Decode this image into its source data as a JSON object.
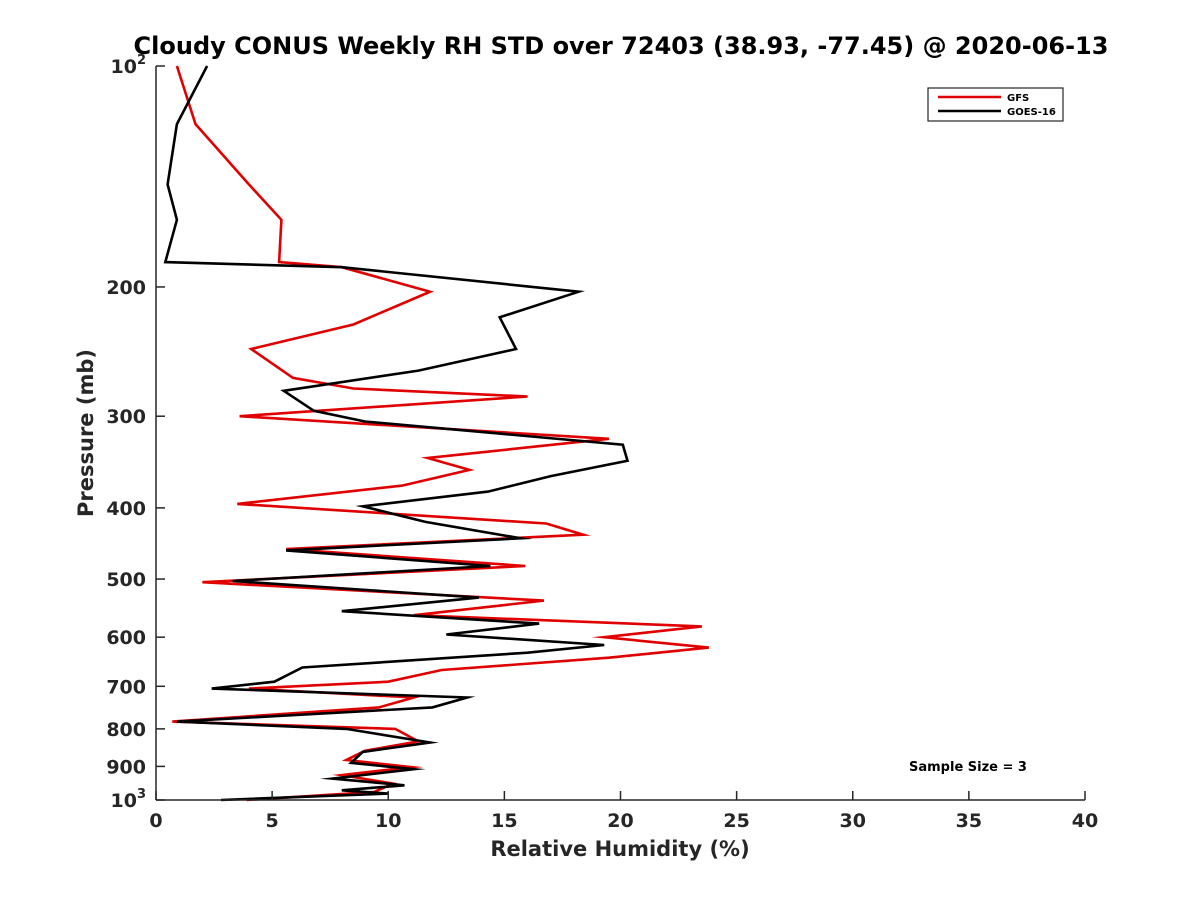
{
  "chart_data": {
    "type": "line",
    "title": "Cloudy CONUS Weekly RH STD over 72403 (38.93, -77.45) @ 2020-06-13",
    "xlabel": "Relative Humidity (%)",
    "ylabel": "Pressure (mb)",
    "xlim": [
      0,
      40
    ],
    "ylim": [
      100,
      1000
    ],
    "yscale": "log",
    "y_reversed": true,
    "grid": false,
    "legend_position": "top-right",
    "x_ticks": [
      "0",
      "5",
      "10",
      "15",
      "20",
      "25",
      "30",
      "35",
      "40"
    ],
    "y_ticks": [
      {
        "value": 100,
        "base": "10",
        "exp": "2"
      },
      {
        "value": 200,
        "label": "200"
      },
      {
        "value": 300,
        "label": "300"
      },
      {
        "value": 400,
        "label": "400"
      },
      {
        "value": 500,
        "label": "500"
      },
      {
        "value": 600,
        "label": "600"
      },
      {
        "value": 700,
        "label": "700"
      },
      {
        "value": 800,
        "label": "800"
      },
      {
        "value": 900,
        "label": "900"
      },
      {
        "value": 1000,
        "base": "10",
        "exp": "3"
      }
    ],
    "series": [
      {
        "name": "GFS",
        "color": "#e00000",
        "x": [
          0.9,
          1.7,
          4.0,
          5.4,
          5.3,
          8.0,
          11.8,
          8.5,
          4.1,
          5.9,
          8.5,
          16.0,
          3.6,
          19.5,
          11.7,
          13.5,
          10.6,
          3.5,
          16.8,
          18.4,
          5.6,
          15.9,
          2.0,
          16.7,
          11.1,
          23.5,
          19.3,
          23.8,
          19.5,
          12.3,
          10.0,
          4.0,
          11.1,
          9.6,
          0.7,
          10.3,
          11.3,
          9.0,
          8.2,
          11.0,
          8.0,
          10.2,
          9.4,
          3.9
        ],
        "y": [
          100,
          120,
          145,
          162,
          185,
          188,
          203,
          225,
          243,
          266,
          275,
          282,
          300,
          322,
          342,
          355,
          373,
          395,
          420,
          435,
          455,
          480,
          505,
          535,
          560,
          580,
          600,
          620,
          640,
          665,
          690,
          705,
          725,
          748,
          782,
          800,
          832,
          857,
          882,
          902,
          925,
          950,
          975,
          1000
        ]
      },
      {
        "name": "GOES-16",
        "color": "#000000",
        "x": [
          2.2,
          0.9,
          0.5,
          0.9,
          0.4,
          8.0,
          18.2,
          14.8,
          15.5,
          11.3,
          5.5,
          6.8,
          9.0,
          20.1,
          20.3,
          17.0,
          14.3,
          8.9,
          11.6,
          15.7,
          5.6,
          14.4,
          3.3,
          13.9,
          8.0,
          16.5,
          12.5,
          19.3,
          16.0,
          6.3,
          5.1,
          2.4,
          13.4,
          11.9,
          0.9,
          8.2,
          11.8,
          8.9,
          8.4,
          11.1,
          7.6,
          10.7,
          8.0,
          10.0,
          2.8
        ],
        "y": [
          100,
          120,
          145,
          162,
          185,
          188,
          203,
          220,
          243,
          260,
          277,
          295,
          305,
          328,
          345,
          362,
          380,
          398,
          418,
          440,
          457,
          480,
          503,
          530,
          553,
          575,
          595,
          615,
          630,
          660,
          690,
          705,
          725,
          748,
          782,
          800,
          835,
          860,
          890,
          908,
          935,
          955,
          970,
          980,
          1000
        ]
      }
    ]
  },
  "annotation": "Sample Size = 3"
}
